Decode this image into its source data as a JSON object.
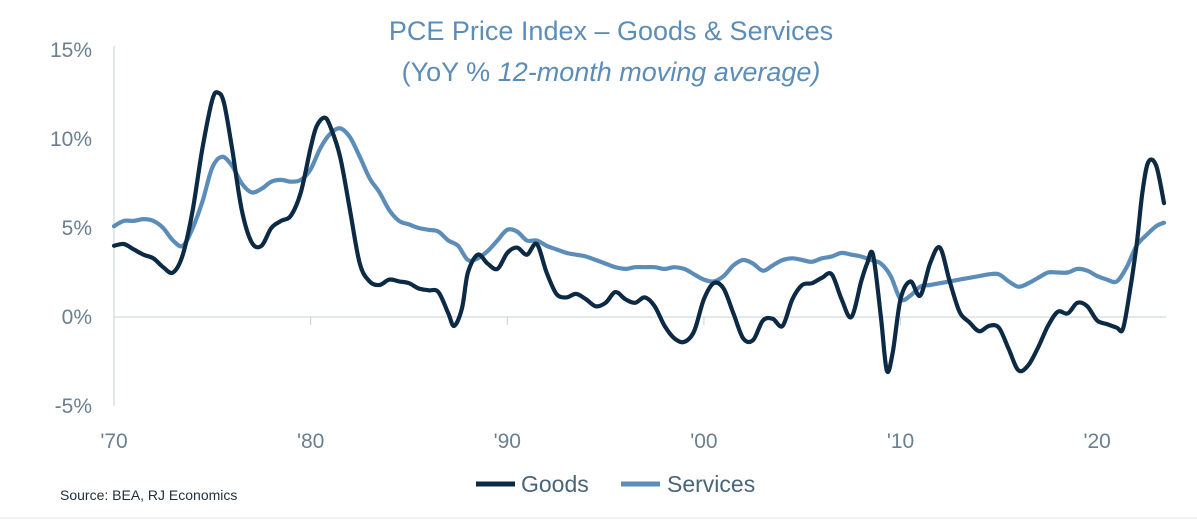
{
  "chart_data": {
    "type": "line",
    "title": "PCE Price Index – Goods & Services",
    "subtitle_prefix": "(YoY % ",
    "subtitle_italic": "12-month moving average)",
    "source": "Source: BEA, RJ Economics",
    "x_tick_labels": [
      "'70",
      "'80",
      "'90",
      "'00",
      "'10",
      "'20"
    ],
    "x_tick_years": [
      1970,
      1980,
      1990,
      2000,
      2010,
      2020
    ],
    "y_tick_labels": [
      "15%",
      "10%",
      "5%",
      "0%",
      "-5%"
    ],
    "y_tick_values": [
      15,
      10,
      5,
      0,
      -5
    ],
    "xlim": [
      1970,
      2023.5
    ],
    "ylim": [
      -5,
      15
    ],
    "grid": false,
    "legend_position": "bottom-center",
    "colors": {
      "goods": "#0d2a45",
      "services": "#5b8db8"
    },
    "series": [
      {
        "name": "Goods",
        "x": [
          1970,
          1970.5,
          1971,
          1971.5,
          1972,
          1972.5,
          1973,
          1973.5,
          1974,
          1974.5,
          1975,
          1975.3,
          1975.6,
          1976,
          1976.5,
          1977,
          1977.5,
          1978,
          1978.5,
          1979,
          1979.5,
          1980,
          1980.3,
          1980.7,
          1981,
          1981.5,
          1982,
          1982.5,
          1983,
          1983.5,
          1984,
          1984.5,
          1985,
          1985.5,
          1986,
          1986.5,
          1987,
          1987.3,
          1987.7,
          1988,
          1988.5,
          1989,
          1989.5,
          1990,
          1990.5,
          1991,
          1991.5,
          1992,
          1992.5,
          1993,
          1993.5,
          1994,
          1994.5,
          1995,
          1995.5,
          1996,
          1996.5,
          1997,
          1997.5,
          1998,
          1998.5,
          1999,
          1999.5,
          2000,
          2000.5,
          2001,
          2001.5,
          2002,
          2002.5,
          2003,
          2003.5,
          2004,
          2004.5,
          2005,
          2005.5,
          2006,
          2006.5,
          2007,
          2007.5,
          2008,
          2008.3,
          2008.6,
          2009,
          2009.3,
          2009.6,
          2010,
          2010.5,
          2011,
          2011.5,
          2012,
          2012.5,
          2013,
          2013.5,
          2014,
          2014.5,
          2015,
          2015.5,
          2016,
          2016.5,
          2017,
          2017.5,
          2018,
          2018.5,
          2019,
          2019.5,
          2020,
          2020.5,
          2021,
          2021.3,
          2021.6,
          2022,
          2022.3,
          2022.6,
          2023,
          2023.4
        ],
        "values": [
          4.0,
          4.1,
          3.8,
          3.5,
          3.3,
          2.8,
          2.5,
          3.5,
          6.0,
          9.5,
          12.2,
          12.6,
          12.0,
          9.5,
          6.0,
          4.2,
          4.0,
          5.0,
          5.4,
          5.7,
          7.0,
          9.5,
          10.7,
          11.2,
          10.7,
          9.0,
          6.0,
          3.0,
          2.0,
          1.8,
          2.1,
          2.0,
          1.9,
          1.6,
          1.5,
          1.4,
          0.2,
          -0.5,
          0.5,
          2.5,
          3.5,
          3.0,
          2.7,
          3.6,
          3.9,
          3.5,
          4.1,
          2.5,
          1.3,
          1.1,
          1.3,
          1.0,
          0.6,
          0.8,
          1.4,
          1.0,
          0.8,
          1.1,
          0.6,
          -0.5,
          -1.2,
          -1.4,
          -0.8,
          1.0,
          1.9,
          1.6,
          0.2,
          -1.2,
          -1.3,
          -0.2,
          -0.1,
          -0.5,
          1.0,
          1.8,
          1.9,
          2.2,
          2.4,
          1.0,
          0.0,
          2.0,
          3.0,
          3.5,
          0.0,
          -3.0,
          -2.0,
          1.0,
          2.0,
          1.2,
          3.0,
          3.9,
          2.0,
          0.3,
          -0.3,
          -0.8,
          -0.5,
          -0.6,
          -1.8,
          -3.0,
          -2.7,
          -1.7,
          -0.5,
          0.3,
          0.2,
          0.8,
          0.6,
          -0.2,
          -0.4,
          -0.6,
          -0.7,
          1.0,
          4.0,
          7.0,
          8.7,
          8.5,
          6.4
        ]
      },
      {
        "name": "Services",
        "x": [
          1970,
          1970.5,
          1971,
          1971.5,
          1972,
          1972.5,
          1973,
          1973.5,
          1974,
          1974.5,
          1975,
          1975.5,
          1976,
          1976.5,
          1977,
          1977.5,
          1978,
          1978.5,
          1979,
          1979.5,
          1980,
          1980.5,
          1981,
          1981.5,
          1982,
          1982.5,
          1983,
          1983.5,
          1984,
          1984.5,
          1985,
          1985.5,
          1986,
          1986.5,
          1987,
          1987.5,
          1988,
          1988.5,
          1989,
          1989.5,
          1990,
          1990.5,
          1991,
          1991.5,
          1992,
          1992.5,
          1993,
          1993.5,
          1994,
          1994.5,
          1995,
          1995.5,
          1996,
          1996.5,
          1997,
          1997.5,
          1998,
          1998.5,
          1999,
          1999.5,
          2000,
          2000.5,
          2001,
          2001.5,
          2002,
          2002.5,
          2003,
          2003.5,
          2004,
          2004.5,
          2005,
          2005.5,
          2006,
          2006.5,
          2007,
          2007.5,
          2008,
          2008.5,
          2009,
          2009.5,
          2010,
          2010.5,
          2011,
          2011.5,
          2012,
          2012.5,
          2013,
          2013.5,
          2014,
          2014.5,
          2015,
          2015.5,
          2016,
          2016.5,
          2017,
          2017.5,
          2018,
          2018.5,
          2019,
          2019.5,
          2020,
          2020.5,
          2021,
          2021.5,
          2022,
          2022.5,
          2023,
          2023.4
        ],
        "values": [
          5.1,
          5.4,
          5.4,
          5.5,
          5.4,
          5.0,
          4.3,
          4.0,
          5.0,
          6.5,
          8.4,
          9.0,
          8.5,
          7.5,
          7.0,
          7.2,
          7.6,
          7.7,
          7.6,
          7.7,
          8.3,
          9.5,
          10.3,
          10.6,
          10.1,
          9.0,
          7.8,
          7.0,
          6.0,
          5.4,
          5.2,
          5.0,
          4.9,
          4.8,
          4.3,
          4.0,
          3.2,
          3.3,
          3.7,
          4.3,
          4.9,
          4.8,
          4.3,
          4.3,
          4.0,
          3.8,
          3.6,
          3.5,
          3.4,
          3.2,
          3.0,
          2.8,
          2.7,
          2.8,
          2.8,
          2.8,
          2.7,
          2.8,
          2.7,
          2.4,
          2.1,
          2.0,
          2.3,
          2.9,
          3.2,
          3.0,
          2.6,
          2.9,
          3.2,
          3.3,
          3.2,
          3.1,
          3.3,
          3.4,
          3.6,
          3.5,
          3.4,
          3.2,
          3.0,
          2.3,
          1.0,
          1.2,
          1.7,
          1.8,
          1.9,
          2.0,
          2.1,
          2.2,
          2.3,
          2.4,
          2.4,
          2.0,
          1.7,
          1.9,
          2.2,
          2.5,
          2.5,
          2.5,
          2.7,
          2.6,
          2.3,
          2.1,
          2.0,
          2.8,
          4.0,
          4.6,
          5.1,
          5.3
        ]
      }
    ]
  }
}
